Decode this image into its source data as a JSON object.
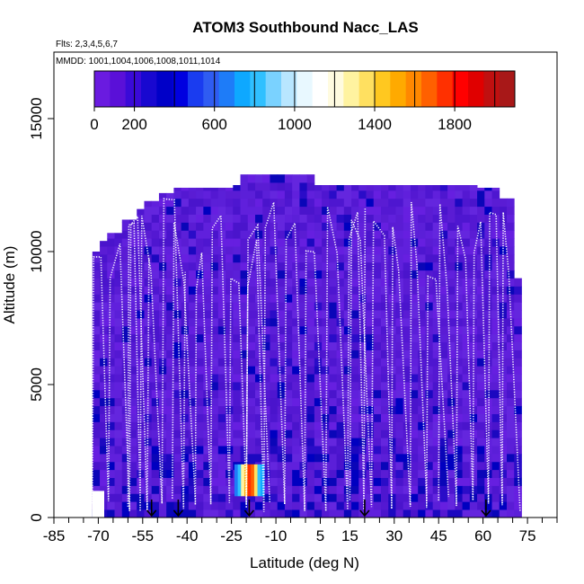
{
  "chart_data": {
    "type": "heatmap",
    "title": "ATOM3 Southbound Nacc_LAS",
    "subtitle_flights": "Flts: 2,3,4,5,6,7",
    "subtitle_dates": "MMDD: 1001,1004,1006,1008,1011,1014",
    "xlabel": "Latitude (deg N)",
    "ylabel": "Altitude (m)",
    "xlim": [
      -85,
      85
    ],
    "ylim": [
      0,
      17500
    ],
    "x_ticks": [
      -85,
      -70,
      -55,
      -40,
      -25,
      -10,
      5,
      15,
      30,
      45,
      60,
      75
    ],
    "x_minor_ticks": [
      -80,
      -75,
      -65,
      -60,
      -50,
      -45,
      -35,
      -30,
      -20,
      -15,
      -5,
      0,
      10,
      20,
      25,
      35,
      40,
      50,
      55,
      65,
      70,
      80,
      85
    ],
    "y_ticks": [
      0,
      5000,
      10000,
      15000
    ],
    "colorbar": {
      "min": 0,
      "max": 2100,
      "ticks": [
        0,
        200,
        600,
        1000,
        1400,
        1800
      ],
      "colors": [
        "#6a1be0",
        "#5a10d8",
        "#3a0ad8",
        "#1808d0",
        "#0000c8",
        "#0000e0",
        "#1a3cf0",
        "#2f5cf2",
        "#1e7cf8",
        "#0ea8ff",
        "#30c0ff",
        "#7ad2ff",
        "#b8e6ff",
        "#e8f8ff",
        "#ffffff",
        "#fffbe0",
        "#fff3a0",
        "#ffe060",
        "#ffc820",
        "#ffaa00",
        "#ff8800",
        "#ff6000",
        "#ff3000",
        "#ff0000",
        "#e00000",
        "#c01010",
        "#a81818"
      ]
    },
    "background_color": "#5a1fd6",
    "flight_ranges": [
      [
        -72,
        -52
      ],
      [
        -60,
        -40
      ],
      [
        -45,
        -15
      ],
      [
        -20,
        20
      ],
      [
        15,
        48
      ],
      [
        45,
        72
      ]
    ],
    "markers": [
      {
        "lat": -52
      },
      {
        "lat": -43
      },
      {
        "lat": -19
      },
      {
        "lat": 20
      },
      {
        "lat": 61
      }
    ],
    "hotspot": {
      "lat_min": -24,
      "lat_max": -14,
      "alt_min": 800,
      "alt_max": 2000,
      "peak": 1900
    }
  }
}
